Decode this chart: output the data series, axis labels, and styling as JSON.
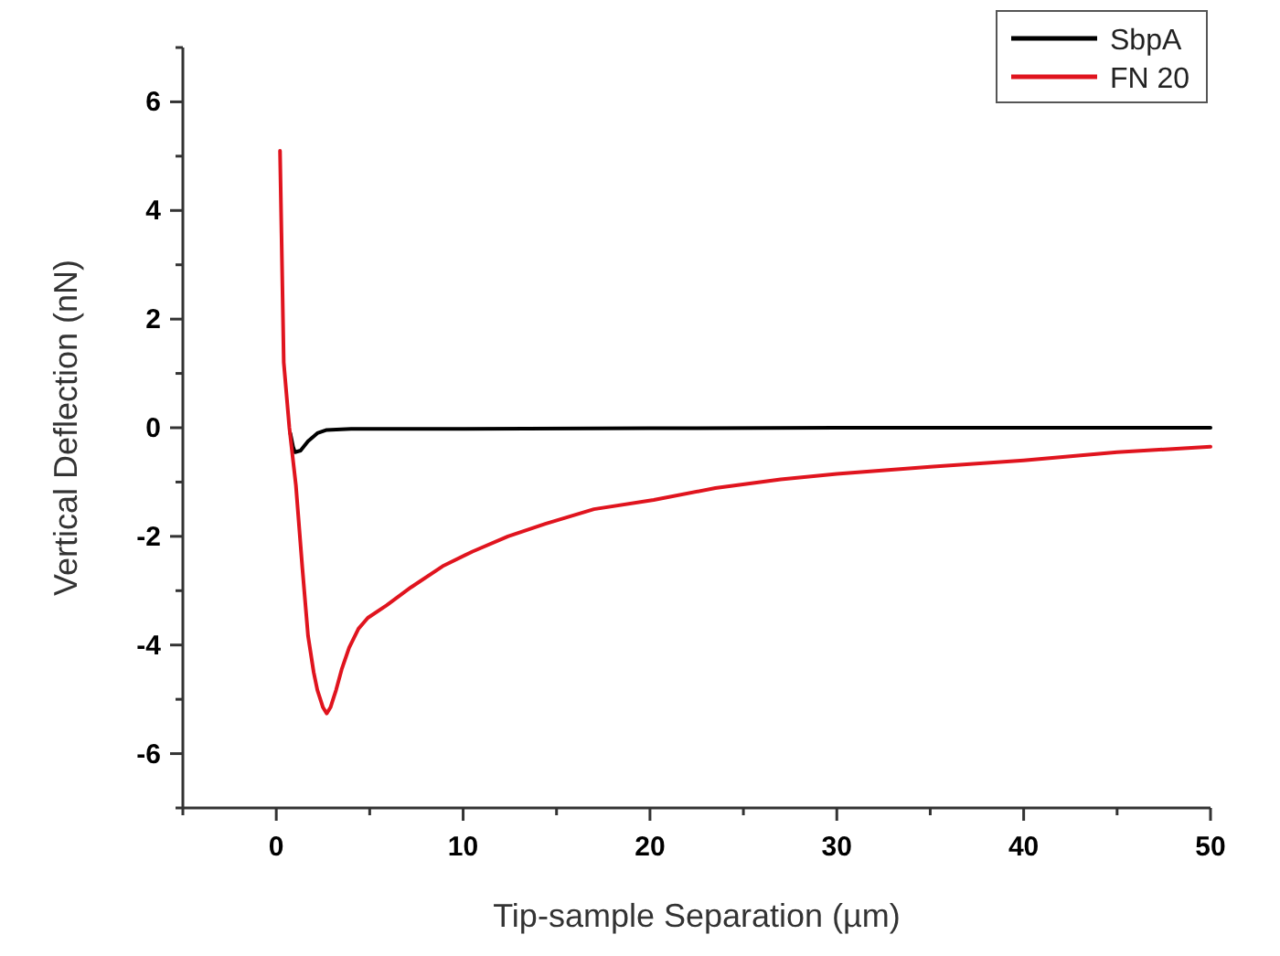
{
  "chart_data": {
    "type": "line",
    "xlabel": "Tip-sample Separation (µm)",
    "ylabel": "Vertical Deflection (nN)",
    "xlim": [
      -5,
      50
    ],
    "ylim": [
      -7,
      7
    ],
    "xticks": [
      {
        "value": -5,
        "label": null
      },
      0,
      {
        "value": 5,
        "label": null
      },
      10,
      {
        "value": 15,
        "label": null
      },
      20,
      {
        "value": 25,
        "label": null
      },
      30,
      {
        "value": 35,
        "label": null
      },
      40,
      {
        "value": 45,
        "label": null
      },
      50
    ],
    "yticks": [
      {
        "value": -7,
        "label": null
      },
      -6,
      {
        "value": -5,
        "label": null
      },
      -4,
      {
        "value": -3,
        "label": null
      },
      -2,
      {
        "value": -1,
        "label": null
      },
      0,
      {
        "value": 1,
        "label": null
      },
      2,
      {
        "value": 3,
        "label": null
      },
      4,
      {
        "value": 5,
        "label": null
      },
      6,
      {
        "value": 7,
        "label": null
      }
    ],
    "grid": false,
    "legend": "top right",
    "line_style": "solid",
    "marker": "none",
    "series": [
      {
        "name": "SbpA",
        "color": "#000000",
        "x": [
          0.75,
          0.9,
          1.0,
          1.3,
          1.7,
          2.2,
          2.7,
          4,
          10,
          20,
          30,
          40,
          50
        ],
        "values": [
          -0.1,
          -0.35,
          -0.45,
          -0.42,
          -0.25,
          -0.1,
          -0.04,
          -0.02,
          -0.02,
          -0.01,
          0,
          0,
          0
        ]
      },
      {
        "name": "FN 20",
        "color": "#e0141e",
        "x": [
          0.2,
          0.4,
          0.7,
          1.05,
          1.4,
          1.7,
          2.0,
          2.2,
          2.5,
          2.7,
          2.9,
          3.2,
          3.5,
          3.9,
          4.4,
          4.9,
          5.9,
          7.2,
          8.9,
          10.5,
          12.4,
          14.4,
          17,
          20.2,
          23.5,
          27,
          30,
          35,
          40,
          45,
          50
        ],
        "values": [
          5.1,
          1.2,
          0.0,
          -1.06,
          -2.6,
          -3.83,
          -4.5,
          -4.83,
          -5.15,
          -5.26,
          -5.15,
          -4.83,
          -4.45,
          -4.05,
          -3.7,
          -3.5,
          -3.27,
          -2.94,
          -2.55,
          -2.28,
          -2.0,
          -1.77,
          -1.5,
          -1.33,
          -1.11,
          -0.95,
          -0.85,
          -0.72,
          -0.6,
          -0.45,
          -0.35
        ]
      }
    ]
  }
}
